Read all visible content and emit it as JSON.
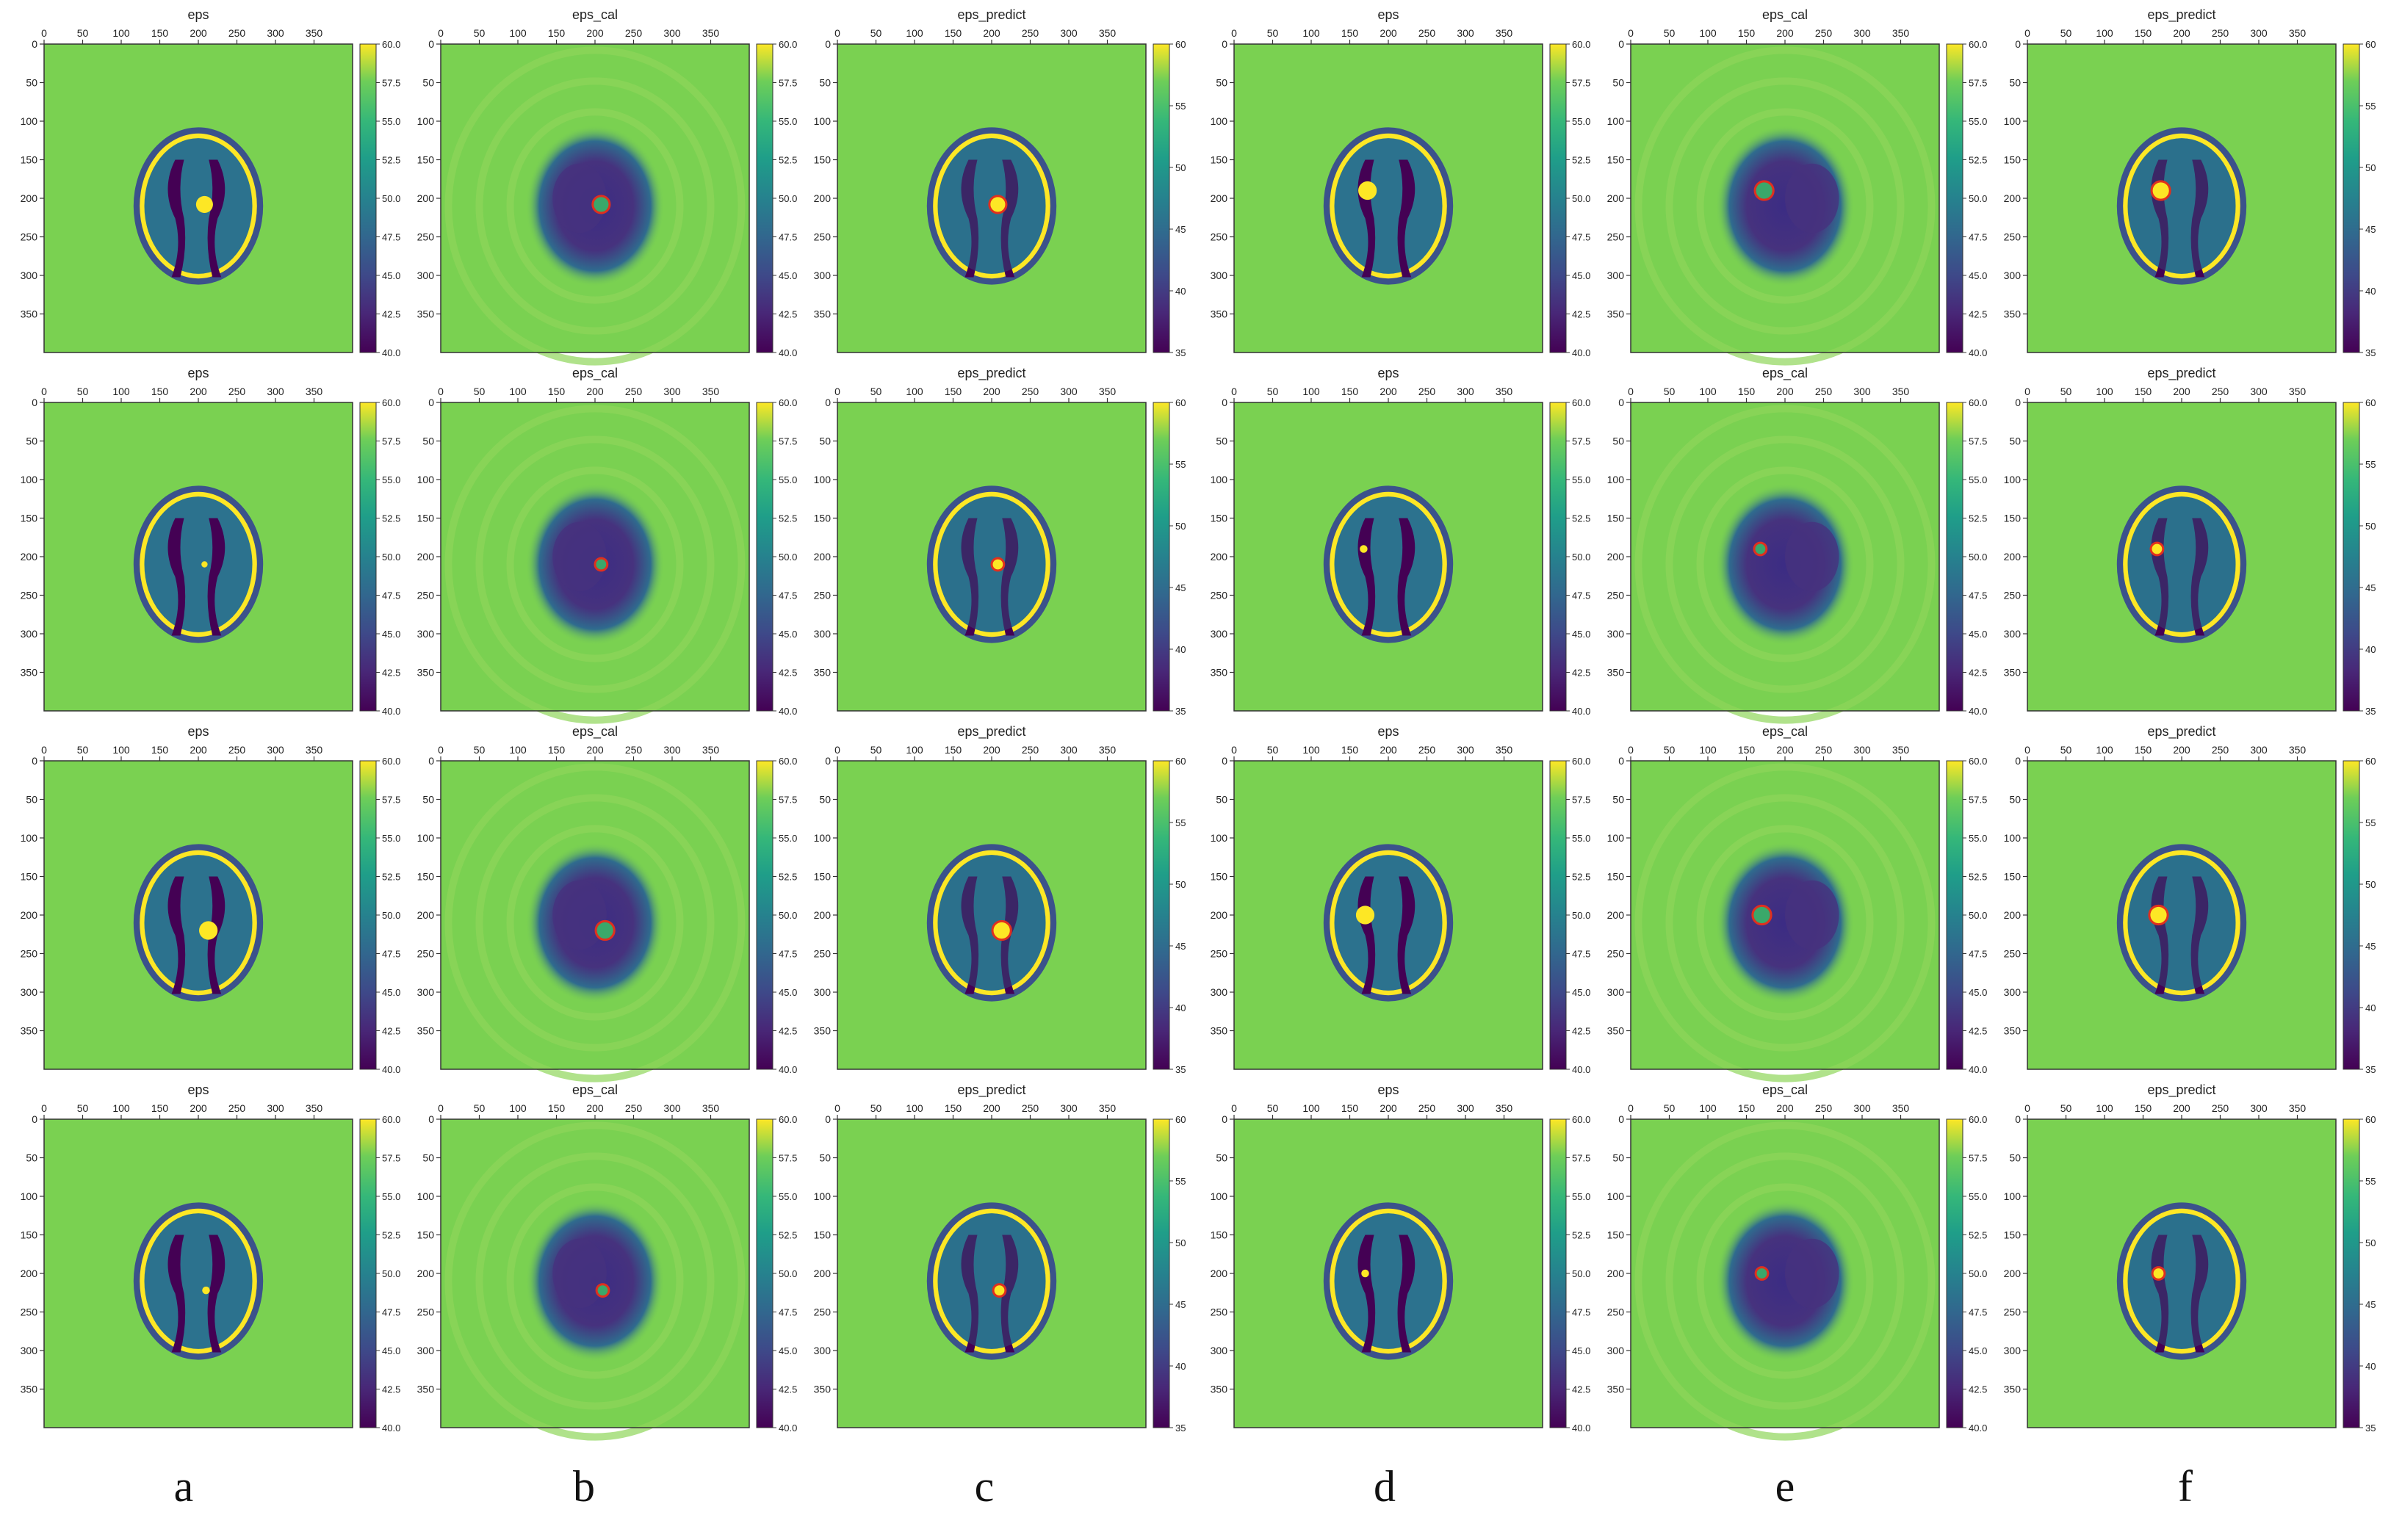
{
  "columns": [
    {
      "title": "eps",
      "label": "a",
      "cb_ticks": [
        "40.0",
        "42.5",
        "45.0",
        "47.5",
        "50.0",
        "52.5",
        "55.0",
        "57.5",
        "60.0"
      ],
      "cb_range": [
        40,
        60
      ]
    },
    {
      "title": "eps_cal",
      "label": "b",
      "cb_ticks": [
        "40.0",
        "42.5",
        "45.0",
        "47.5",
        "50.0",
        "52.5",
        "55.0",
        "57.5",
        "60.0"
      ],
      "cb_range": [
        40,
        60
      ]
    },
    {
      "title": "eps_predict",
      "label": "c",
      "cb_ticks": [
        "35",
        "40",
        "45",
        "50",
        "55",
        "60"
      ],
      "cb_range": [
        35,
        60
      ]
    },
    {
      "title": "eps",
      "label": "d",
      "cb_ticks": [
        "40.0",
        "42.5",
        "45.0",
        "47.5",
        "50.0",
        "52.5",
        "55.0",
        "57.5",
        "60.0"
      ],
      "cb_range": [
        40,
        60
      ]
    },
    {
      "title": "eps_cal",
      "label": "e",
      "cb_ticks": [
        "40.0",
        "42.5",
        "45.0",
        "47.5",
        "50.0",
        "52.5",
        "55.0",
        "57.5",
        "60.0"
      ],
      "cb_range": [
        40,
        60
      ]
    },
    {
      "title": "eps_predict",
      "label": "f",
      "cb_ticks": [
        "35",
        "40",
        "45",
        "50",
        "55",
        "60"
      ],
      "cb_range": [
        35,
        60
      ]
    }
  ],
  "x_ticks": [
    "0",
    "50",
    "100",
    "150",
    "200",
    "250",
    "300",
    "350"
  ],
  "y_ticks": [
    "0",
    "50",
    "100",
    "150",
    "200",
    "250",
    "300",
    "350"
  ],
  "tumors": [
    {
      "left": {
        "x": 208,
        "y": 208,
        "r": 11
      },
      "right": {
        "x": 173,
        "y": 190,
        "r": 12
      }
    },
    {
      "left": {
        "x": 208,
        "y": 210,
        "r": 4
      },
      "right": {
        "x": 168,
        "y": 190,
        "r": 5
      }
    },
    {
      "left": {
        "x": 213,
        "y": 220,
        "r": 12
      },
      "right": {
        "x": 170,
        "y": 200,
        "r": 12
      }
    },
    {
      "left": {
        "x": 210,
        "y": 222,
        "r": 5
      },
      "right": {
        "x": 170,
        "y": 200,
        "r": 5
      }
    }
  ],
  "colors": {
    "background": "#7ad151",
    "skull": "#fde725",
    "scalp": "#3b528b",
    "brain": "#2c728e",
    "ventricle": "#440154",
    "marker_ring": "#e0301e"
  }
}
